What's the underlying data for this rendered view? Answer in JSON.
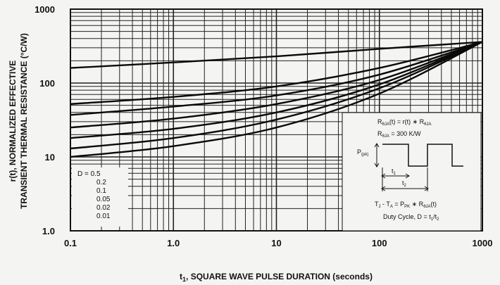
{
  "chart_data": {
    "type": "line",
    "x_scale": "log",
    "y_scale": "log",
    "xlim": [
      0.1,
      1000
    ],
    "ylim": [
      1,
      1000
    ],
    "xlabel_main": "t",
    "xlabel_sub": "1",
    "xlabel_rest": ", SQUARE WAVE PULSE DURATION (seconds)",
    "ylabel_line1": "r(t), NORMALIZED EFFECTIVE",
    "ylabel_line2": "TRANSIENT THERMAL RESISTANCE (°C/W)",
    "x_ticks": [
      {
        "v": 0.1,
        "label": "0.1"
      },
      {
        "v": 1,
        "label": "1.0"
      },
      {
        "v": 10,
        "label": "10"
      },
      {
        "v": 100,
        "label": "100"
      },
      {
        "v": 1000,
        "label": "1000"
      }
    ],
    "y_ticks": [
      {
        "v": 1000,
        "label": "1000"
      },
      {
        "v": 100,
        "label": "100"
      },
      {
        "v": 10,
        "label": "10"
      },
      {
        "v": 1,
        "label": "1.0"
      }
    ],
    "grid": true,
    "legend": {
      "position": "bottom-left",
      "entries": [
        "D = 0.5",
        "0.2",
        "0.1",
        "0.05",
        "0.02",
        "0.01"
      ]
    },
    "series": [
      {
        "x": [
          0.1,
          1,
          10,
          100,
          1000
        ],
        "y": [
          160,
          190,
          230,
          290,
          360
        ]
      },
      {
        "x": [
          0.1,
          1,
          10,
          100,
          1000
        ],
        "y": [
          52,
          65,
          90,
          160,
          360
        ]
      },
      {
        "x": [
          0.1,
          1,
          10,
          100,
          1000
        ],
        "y": [
          37,
          48,
          68,
          130,
          360
        ]
      },
      {
        "x": [
          0.1,
          1,
          10,
          100,
          1000
        ],
        "y": [
          25,
          33,
          52,
          110,
          360
        ]
      },
      {
        "x": [
          0.1,
          1,
          10,
          100,
          1000
        ],
        "y": [
          18,
          24,
          40,
          96,
          360
        ]
      },
      {
        "x": [
          0.1,
          1,
          10,
          100,
          1000
        ],
        "y": [
          13,
          18,
          32,
          85,
          360
        ]
      },
      {
        "x": [
          0.1,
          1,
          10,
          100,
          1000
        ],
        "y": [
          10,
          14,
          25,
          72,
          360
        ]
      }
    ],
    "inset": {
      "r_formula": "R",
      "r_sub": "θJA",
      "r_rest": "(t) = r(t) ∗ R",
      "r_sub2": "θJA",
      "r_value_a": "R",
      "r_value_sub": "θJA",
      "r_value_rest": " = 300 K/W",
      "p_label": "P",
      "p_sub": "(pk)",
      "t1_label": "t",
      "t1_sub": "1",
      "t2_label": "t",
      "t2_sub": "2",
      "tj_line": "T",
      "tj_sub1": "J",
      "tj_mid": " - T",
      "tj_sub2": "A",
      "tj_mid2": " = P",
      "tj_sub3": "PK",
      "tj_mid3": " ∗ R",
      "tj_sub4": "θJA",
      "tj_end": "(t)",
      "duty_a": "Duty Cycle, D = t",
      "duty_sub1": "1",
      "duty_slash": "/t",
      "duty_sub2": "2"
    }
  }
}
